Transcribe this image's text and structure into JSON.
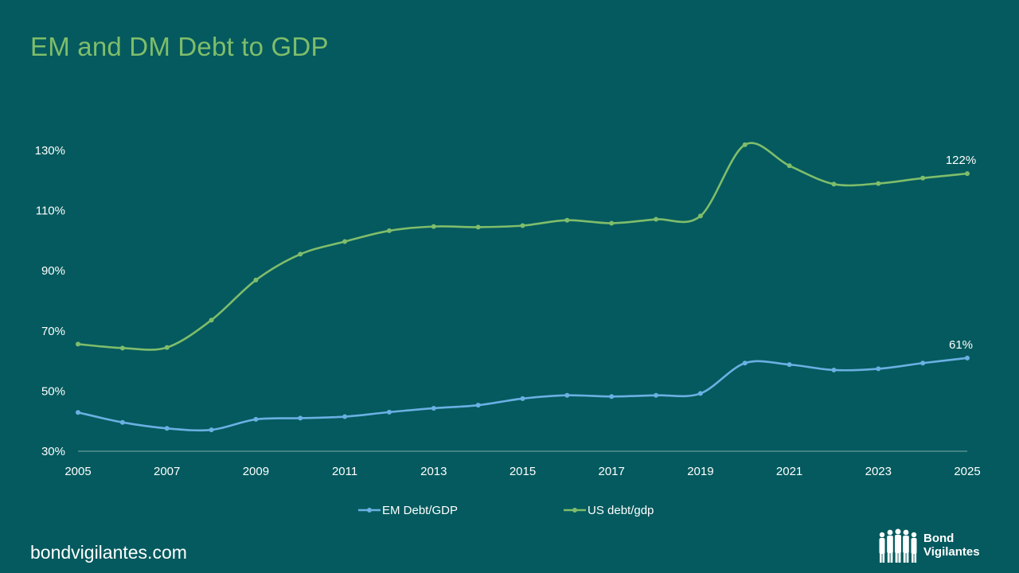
{
  "page": {
    "title": "EM and DM Debt to GDP",
    "footer_url": "bondvigilantes.com",
    "brand_line1": "Bond",
    "brand_line2": "Vigilantes"
  },
  "colors": {
    "background": "#045a5e",
    "title": "#7fbd6b",
    "em_series": "#6ab0e3",
    "us_series": "#7fbd6b",
    "text": "#ffffff"
  },
  "chart_data": {
    "type": "line",
    "title": "EM and DM Debt to GDP",
    "x": [
      2005,
      2006,
      2007,
      2008,
      2009,
      2010,
      2011,
      2012,
      2013,
      2014,
      2015,
      2016,
      2017,
      2018,
      2019,
      2020,
      2021,
      2022,
      2023,
      2024,
      2025
    ],
    "x_tick_labels": [
      "2005",
      "2007",
      "2009",
      "2011",
      "2013",
      "2015",
      "2017",
      "2019",
      "2021",
      "2023",
      "2025"
    ],
    "y_tick_labels": [
      "30%",
      "50%",
      "70%",
      "90%",
      "110%",
      "130%"
    ],
    "ylim": [
      30,
      130
    ],
    "xlim": [
      2005,
      2025
    ],
    "grid": false,
    "legend_position": "bottom",
    "series": [
      {
        "name": "EM Debt/GDP",
        "color": "#6ab0e3",
        "values": [
          42.9,
          39.6,
          37.6,
          37.1,
          40.6,
          41.0,
          41.5,
          43.0,
          44.3,
          45.3,
          47.5,
          48.6,
          48.2,
          48.6,
          49.2,
          59.3,
          58.8,
          57.0,
          57.4,
          59.3,
          61.0
        ],
        "end_label": "61%"
      },
      {
        "name": "US debt/gdp",
        "color": "#7fbd6b",
        "values": [
          65.6,
          64.3,
          64.5,
          73.6,
          86.9,
          95.5,
          99.7,
          103.3,
          104.7,
          104.5,
          105.0,
          106.8,
          105.8,
          107.1,
          108.2,
          131.9,
          124.9,
          118.8,
          119.0,
          120.8,
          122.3
        ],
        "end_label": "122%"
      }
    ]
  }
}
